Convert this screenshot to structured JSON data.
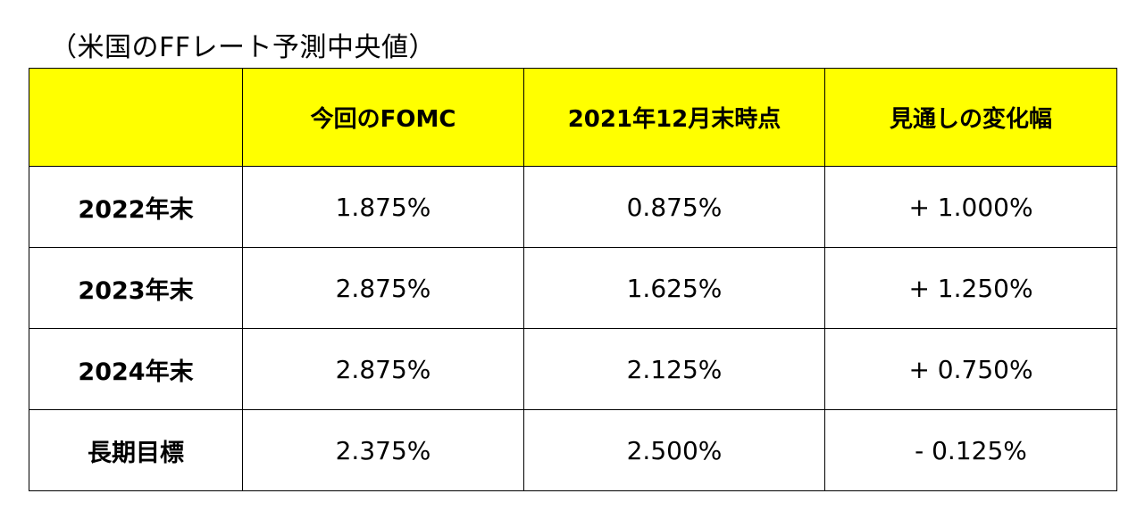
{
  "title": "（米国のFFレート予測中央値）",
  "colors": {
    "header_background": "#FFFF00",
    "border": "#000000",
    "body_background": "#FFFFFF"
  },
  "chart_data": {
    "type": "table",
    "title": "（米国のFFレート予測中央値）",
    "columns": [
      "",
      "今回のFOMC",
      "2021年12月末時点",
      "見通しの変化幅"
    ],
    "rows": [
      {
        "label": "2022年末",
        "current": "1.875%",
        "dec_2021": "0.875%",
        "change": "+ 1.000%"
      },
      {
        "label": "2023年末",
        "current": "2.875%",
        "dec_2021": "1.625%",
        "change": "+ 1.250%"
      },
      {
        "label": "2024年末",
        "current": "2.875%",
        "dec_2021": "2.125%",
        "change": "+ 0.750%"
      },
      {
        "label": "長期目標",
        "current": "2.375%",
        "dec_2021": "2.500%",
        "change": "- 0.125%"
      }
    ]
  }
}
